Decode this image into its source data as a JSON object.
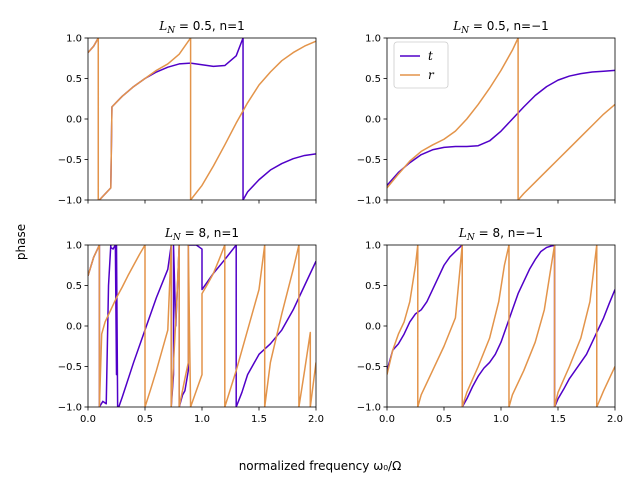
{
  "figure": {
    "ylabel": "phase",
    "xlabel": "normalized frequency ω₀/Ω"
  },
  "colors": {
    "t": "#5000c8",
    "r": "#e3944a"
  },
  "chart_data": [
    {
      "type": "line",
      "title": "L_N = 0.5, n=1",
      "title_parts": {
        "var": "L",
        "sub": "N",
        "rest": " = 0.5, n=1"
      },
      "xlim": [
        0,
        2
      ],
      "ylim": [
        -1,
        1
      ],
      "xticks": [
        0.0,
        0.5,
        1.0,
        1.5,
        2.0
      ],
      "xtick_labels": [
        "0.0",
        "0.5",
        "1.0",
        "1.5",
        "2.0"
      ],
      "yticks": [
        -1.0,
        -0.5,
        0.0,
        0.5,
        1.0
      ],
      "ytick_labels": [
        "−1.0",
        "−0.5",
        "0.0",
        "0.5",
        "1.0"
      ],
      "show_xtick_labels": false,
      "series": [
        {
          "name": "t",
          "color": "t",
          "x": [
            0,
            0.05,
            0.09,
            0.09,
            0.1,
            0.1,
            0.2,
            0.2,
            0.21,
            0.21,
            0.3,
            0.4,
            0.5,
            0.6,
            0.7,
            0.8,
            0.9,
            1.0,
            1.1,
            1.2,
            1.3,
            1.36,
            1.36,
            1.4,
            1.5,
            1.6,
            1.7,
            1.8,
            1.9,
            2.0
          ],
          "y": [
            0.82,
            0.9,
            1.0,
            -1.0,
            -1.0,
            -1.0,
            -0.85,
            -0.85,
            0.15,
            0.15,
            0.28,
            0.4,
            0.5,
            0.58,
            0.64,
            0.68,
            0.69,
            0.67,
            0.65,
            0.66,
            0.78,
            1.0,
            -1.0,
            -0.9,
            -0.75,
            -0.63,
            -0.55,
            -0.49,
            -0.45,
            -0.43
          ]
        },
        {
          "name": "r",
          "color": "r",
          "x": [
            0,
            0.05,
            0.09,
            0.09,
            0.1,
            0.1,
            0.2,
            0.2,
            0.21,
            0.21,
            0.3,
            0.4,
            0.5,
            0.6,
            0.7,
            0.8,
            0.9,
            0.9,
            1.0,
            1.1,
            1.2,
            1.3,
            1.4,
            1.5,
            1.6,
            1.7,
            1.8,
            1.9,
            2.0
          ],
          "y": [
            0.82,
            0.9,
            1.0,
            -1.0,
            -1.0,
            -1.0,
            -0.85,
            -0.85,
            0.15,
            0.15,
            0.28,
            0.4,
            0.5,
            0.6,
            0.68,
            0.8,
            1.0,
            -1.0,
            -0.82,
            -0.58,
            -0.32,
            -0.05,
            0.2,
            0.42,
            0.58,
            0.72,
            0.82,
            0.9,
            0.96
          ]
        }
      ]
    },
    {
      "type": "line",
      "title": "L_N = 0.5, n=−1",
      "title_parts": {
        "var": "L",
        "sub": "N",
        "rest": " = 0.5, n=−1"
      },
      "xlim": [
        0,
        2
      ],
      "ylim": [
        -1,
        1
      ],
      "xticks": [
        0.0,
        0.5,
        1.0,
        1.5,
        2.0
      ],
      "xtick_labels": [
        "0.0",
        "0.5",
        "1.0",
        "1.5",
        "2.0"
      ],
      "yticks": [
        -1.0,
        -0.5,
        0.0,
        0.5,
        1.0
      ],
      "ytick_labels": [
        "−1.0",
        "−0.5",
        "0.0",
        "0.5",
        "1.0"
      ],
      "show_xtick_labels": false,
      "legend": {
        "placement": "top-left",
        "entries": [
          "t",
          "r"
        ]
      },
      "series": [
        {
          "name": "t",
          "color": "t",
          "x": [
            0,
            0.1,
            0.2,
            0.3,
            0.4,
            0.5,
            0.6,
            0.7,
            0.8,
            0.9,
            1.0,
            1.1,
            1.2,
            1.3,
            1.4,
            1.5,
            1.6,
            1.7,
            1.8,
            1.9,
            2.0
          ],
          "y": [
            -0.82,
            -0.66,
            -0.54,
            -0.44,
            -0.38,
            -0.35,
            -0.34,
            -0.34,
            -0.33,
            -0.27,
            -0.15,
            0.0,
            0.15,
            0.29,
            0.4,
            0.48,
            0.53,
            0.56,
            0.58,
            0.59,
            0.6
          ]
        },
        {
          "name": "r",
          "color": "r",
          "x": [
            0,
            0.1,
            0.2,
            0.3,
            0.4,
            0.5,
            0.6,
            0.7,
            0.8,
            0.9,
            1.0,
            1.1,
            1.15,
            1.15,
            1.2,
            1.3,
            1.4,
            1.5,
            1.6,
            1.7,
            1.8,
            1.9,
            2.0
          ],
          "y": [
            -0.85,
            -0.68,
            -0.52,
            -0.4,
            -0.32,
            -0.25,
            -0.15,
            0.0,
            0.18,
            0.38,
            0.6,
            0.85,
            1.0,
            -1.0,
            -0.92,
            -0.78,
            -0.64,
            -0.5,
            -0.36,
            -0.22,
            -0.08,
            0.06,
            0.18
          ]
        }
      ]
    },
    {
      "type": "line",
      "title": "L_N = 8, n=1",
      "title_parts": {
        "var": "L",
        "sub": "N",
        "rest": " = 8, n=1"
      },
      "xlim": [
        0,
        2
      ],
      "ylim": [
        -1,
        1
      ],
      "xticks": [
        0.0,
        0.5,
        1.0,
        1.5,
        2.0
      ],
      "xtick_labels": [
        "0.0",
        "0.5",
        "1.0",
        "1.5",
        "2.0"
      ],
      "yticks": [
        -1.0,
        -0.5,
        0.0,
        0.5,
        1.0
      ],
      "ytick_labels": [
        "−1.0",
        "−0.5",
        "0.0",
        "0.5",
        "1.0"
      ],
      "show_xtick_labels": true,
      "series": [
        {
          "name": "t",
          "color": "t",
          "x": [
            0,
            0.05,
            0.1,
            0.1,
            0.13,
            0.16,
            0.18,
            0.2,
            0.2,
            0.22,
            0.24,
            0.25,
            0.25,
            0.26,
            0.27,
            0.3,
            0.4,
            0.5,
            0.6,
            0.7,
            0.73,
            0.73,
            0.75,
            0.75,
            0.77,
            0.8,
            0.8,
            0.83,
            0.85,
            0.88,
            0.88,
            0.95,
            1.0,
            1.0,
            1.05,
            1.1,
            1.2,
            1.3,
            1.3,
            1.35,
            1.4,
            1.5,
            1.6,
            1.7,
            1.8,
            1.9,
            2.0
          ],
          "y": [
            0.62,
            0.85,
            1.0,
            -1.0,
            -0.93,
            -0.96,
            0.5,
            1.0,
            0.97,
            0.95,
            1.0,
            -0.6,
            1.0,
            -1.0,
            -1.0,
            -0.88,
            -0.45,
            -0.05,
            0.35,
            0.7,
            1.0,
            -1.0,
            -0.6,
            1.0,
            0.0,
            1.0,
            -1.0,
            -0.85,
            -0.8,
            -0.55,
            1.0,
            1.0,
            0.95,
            0.45,
            0.55,
            0.65,
            0.82,
            1.0,
            -1.0,
            -0.82,
            -0.6,
            -0.35,
            -0.22,
            -0.05,
            0.2,
            0.5,
            0.8
          ]
        },
        {
          "name": "r",
          "color": "r",
          "x": [
            0,
            0.05,
            0.1,
            0.1,
            0.12,
            0.15,
            0.2,
            0.25,
            0.3,
            0.35,
            0.4,
            0.45,
            0.5,
            0.5,
            0.55,
            0.6,
            0.7,
            0.73,
            0.73,
            0.78,
            0.8,
            0.8,
            0.85,
            0.88,
            0.88,
            0.9,
            0.95,
            1.0,
            1.0,
            1.05,
            1.1,
            1.15,
            1.2,
            1.2,
            1.3,
            1.4,
            1.5,
            1.55,
            1.55,
            1.6,
            1.7,
            1.8,
            1.85,
            1.85,
            1.9,
            1.95,
            1.95,
            2.0
          ],
          "y": [
            0.62,
            0.85,
            1.0,
            -1.0,
            -0.1,
            0.05,
            0.2,
            0.35,
            0.48,
            0.62,
            0.75,
            0.88,
            1.0,
            -1.0,
            -0.78,
            -0.55,
            -0.05,
            1.0,
            -1.0,
            0.35,
            1.0,
            -1.0,
            -0.65,
            -0.45,
            1.0,
            -1.0,
            -0.8,
            -0.6,
            0.4,
            0.52,
            0.65,
            0.82,
            1.0,
            -1.0,
            -0.55,
            -0.05,
            0.45,
            1.0,
            -1.0,
            -0.45,
            0.15,
            0.7,
            1.0,
            -1.0,
            -0.55,
            -0.08,
            -1.0,
            -0.45
          ]
        }
      ]
    },
    {
      "type": "line",
      "title": "L_N = 8, n=−1",
      "title_parts": {
        "var": "L",
        "sub": "N",
        "rest": " = 8, n=−1"
      },
      "xlim": [
        0,
        2
      ],
      "ylim": [
        -1,
        1
      ],
      "xticks": [
        0.0,
        0.5,
        1.0,
        1.5,
        2.0
      ],
      "xtick_labels": [
        "0.0",
        "0.5",
        "1.0",
        "1.5",
        "2.0"
      ],
      "yticks": [
        -1.0,
        -0.5,
        0.0,
        0.5,
        1.0
      ],
      "ytick_labels": [
        "−1.0",
        "−0.5",
        "0.0",
        "0.5",
        "1.0"
      ],
      "show_xtick_labels": true,
      "series": [
        {
          "name": "t",
          "color": "t",
          "x": [
            0,
            0.05,
            0.1,
            0.15,
            0.2,
            0.25,
            0.3,
            0.35,
            0.4,
            0.45,
            0.5,
            0.55,
            0.6,
            0.66,
            0.66,
            0.7,
            0.75,
            0.8,
            0.85,
            0.9,
            0.95,
            1.0,
            1.05,
            1.1,
            1.15,
            1.2,
            1.25,
            1.3,
            1.35,
            1.4,
            1.47,
            1.47,
            1.5,
            1.55,
            1.6,
            1.65,
            1.7,
            1.75,
            1.8,
            1.85,
            1.9,
            1.95,
            2.0
          ],
          "y": [
            -0.55,
            -0.3,
            -0.22,
            -0.1,
            0.05,
            0.15,
            0.2,
            0.3,
            0.45,
            0.6,
            0.75,
            0.85,
            0.92,
            1.0,
            -1.0,
            -0.9,
            -0.75,
            -0.62,
            -0.52,
            -0.45,
            -0.35,
            -0.2,
            0.0,
            0.2,
            0.4,
            0.55,
            0.7,
            0.82,
            0.92,
            0.97,
            1.0,
            -1.0,
            -0.9,
            -0.78,
            -0.65,
            -0.55,
            -0.45,
            -0.35,
            -0.2,
            -0.05,
            0.1,
            0.28,
            0.45
          ]
        },
        {
          "name": "r",
          "color": "r",
          "x": [
            0,
            0.05,
            0.1,
            0.15,
            0.2,
            0.25,
            0.27,
            0.27,
            0.3,
            0.4,
            0.5,
            0.6,
            0.66,
            0.66,
            0.7,
            0.8,
            0.9,
            0.98,
            1.03,
            1.07,
            1.07,
            1.1,
            1.2,
            1.3,
            1.38,
            1.43,
            1.47,
            1.47,
            1.5,
            1.6,
            1.7,
            1.78,
            1.84,
            1.84,
            1.9,
            2.0
          ],
          "y": [
            -0.6,
            -0.3,
            -0.1,
            0.05,
            0.3,
            0.75,
            1.0,
            -1.0,
            -0.85,
            -0.55,
            -0.25,
            0.1,
            1.0,
            -1.0,
            -0.82,
            -0.5,
            -0.15,
            0.3,
            0.75,
            1.0,
            -1.0,
            -0.85,
            -0.55,
            -0.2,
            0.2,
            0.65,
            1.0,
            -1.0,
            -0.82,
            -0.5,
            -0.15,
            0.3,
            1.0,
            -1.0,
            -0.8,
            -0.5
          ]
        }
      ]
    }
  ]
}
